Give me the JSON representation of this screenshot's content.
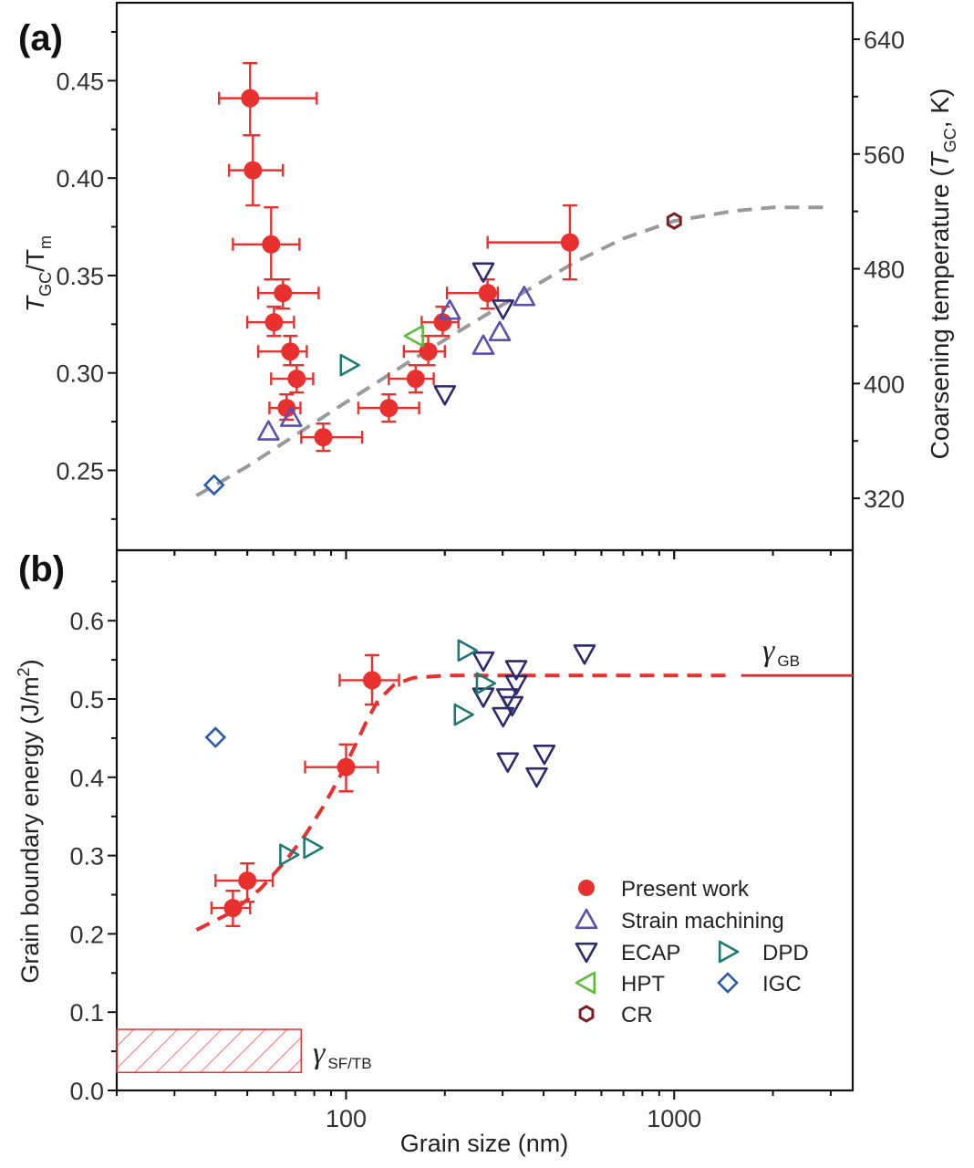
{
  "chart_data": [
    {
      "type": "scatter",
      "panel_label": "(a)",
      "xlabel": "Grain size (nm)",
      "xscale": "log",
      "xlim": [
        20,
        3500
      ],
      "x_ticks": [
        {
          "value": 100,
          "label": "100"
        },
        {
          "value": 1000,
          "label": "1000"
        }
      ],
      "ylabel_left": {
        "main": "T",
        "sub1": "GC",
        "sep": "/T",
        "sub2": "m"
      },
      "ylim": [
        0.209,
        0.49
      ],
      "y_ticks": [
        {
          "value": 0.25,
          "label": "0.25"
        },
        {
          "value": 0.3,
          "label": "0.30"
        },
        {
          "value": 0.35,
          "label": "0.35"
        },
        {
          "value": 0.4,
          "label": "0.40"
        },
        {
          "value": 0.45,
          "label": "0.45"
        }
      ],
      "ylabel_right": {
        "pre": "Coarsening temperature (",
        "main": "T",
        "sub": "GC",
        "post": ", K)"
      },
      "right_axis_factor_K": 1358,
      "y2_ticks": [
        {
          "value": 320,
          "label": "320"
        },
        {
          "value": 400,
          "label": "400"
        },
        {
          "value": 480,
          "label": "480"
        },
        {
          "value": 560,
          "label": "560"
        },
        {
          "value": 640,
          "label": "640"
        }
      ],
      "grid": false,
      "series": [
        {
          "name": "Present work",
          "marker": "circle",
          "color": "#e8312f",
          "points": [
            {
              "x": 51.0,
              "y": 0.441,
              "xlo": 41.0,
              "xhi": 81.4,
              "ylo": 0.422,
              "yhi": 0.459
            },
            {
              "x": 52.0,
              "y": 0.404,
              "xlo": 44.0,
              "xhi": 64.2,
              "ylo": 0.386,
              "yhi": 0.422
            },
            {
              "x": 59.1,
              "y": 0.366,
              "xlo": 45.2,
              "xhi": 72.1,
              "ylo": 0.348,
              "yhi": 0.385
            },
            {
              "x": 64.2,
              "y": 0.341,
              "xlo": 54.0,
              "xhi": 82.5,
              "ylo": 0.333,
              "yhi": 0.348
            },
            {
              "x": 60.3,
              "y": 0.326,
              "xlo": 50.0,
              "xhi": 69.4,
              "ylo": 0.319,
              "yhi": 0.334
            },
            {
              "x": 67.6,
              "y": 0.311,
              "xlo": 54.0,
              "xhi": 75.9,
              "ylo": 0.304,
              "yhi": 0.319
            },
            {
              "x": 70.7,
              "y": 0.297,
              "xlo": 59.1,
              "xhi": 79.4,
              "ylo": 0.29,
              "yhi": 0.304
            },
            {
              "x": 65.9,
              "y": 0.282,
              "xlo": 58.4,
              "xhi": 72.6,
              "ylo": 0.276,
              "yhi": 0.289
            },
            {
              "x": 85.2,
              "y": 0.267,
              "xlo": 73.0,
              "xhi": 112,
              "ylo": 0.26,
              "yhi": 0.274
            },
            {
              "x": 135,
              "y": 0.282,
              "xlo": 109,
              "xhi": 167,
              "ylo": 0.275,
              "yhi": 0.289
            },
            {
              "x": 163,
              "y": 0.297,
              "xlo": 135,
              "xhi": 185,
              "ylo": 0.29,
              "yhi": 0.304
            },
            {
              "x": 178,
              "y": 0.311,
              "xlo": 150,
              "xhi": 200,
              "ylo": 0.304,
              "yhi": 0.319
            },
            {
              "x": 197,
              "y": 0.326,
              "xlo": 170,
              "xhi": 220,
              "ylo": 0.319,
              "yhi": 0.334
            },
            {
              "x": 270,
              "y": 0.341,
              "xlo": 203,
              "xhi": 290,
              "ylo": 0.333,
              "yhi": 0.348
            },
            {
              "x": 481,
              "y": 0.367,
              "xlo": 270,
              "xhi": 481,
              "ylo": 0.348,
              "yhi": 0.386
            }
          ]
        },
        {
          "name": "Strain machining",
          "marker": "triangle-up",
          "color": "#5b4fb0",
          "points": [
            {
              "x": 58,
              "y": 0.27
            },
            {
              "x": 68,
              "y": 0.277
            },
            {
              "x": 207,
              "y": 0.332
            },
            {
              "x": 349,
              "y": 0.339
            },
            {
              "x": 294,
              "y": 0.321
            },
            {
              "x": 262,
              "y": 0.314
            }
          ]
        },
        {
          "name": "ECAP",
          "marker": "triangle-down",
          "color": "#2d2a6e",
          "points": [
            {
              "x": 262,
              "y": 0.352
            },
            {
              "x": 301,
              "y": 0.333
            },
            {
              "x": 200,
              "y": 0.289
            }
          ]
        },
        {
          "name": "HPT",
          "marker": "triangle-left",
          "color": "#5dbb3c",
          "points": [
            {
              "x": 162,
              "y": 0.319
            }
          ]
        },
        {
          "name": "DPD",
          "marker": "triangle-right",
          "color": "#1e7a70",
          "points": [
            {
              "x": 102,
              "y": 0.304
            }
          ]
        },
        {
          "name": "IGC",
          "marker": "diamond",
          "color": "#2a5aa8",
          "points": [
            {
              "x": 39.6,
              "y": 0.2425
            }
          ]
        },
        {
          "name": "CR",
          "marker": "hexagon",
          "color": "#7a1e1e",
          "points": [
            {
              "x": 1000,
              "y": 0.378
            }
          ]
        }
      ],
      "fit_curve": {
        "style": "dashed",
        "color": "#9a9a9a",
        "points": [
          {
            "x": 35,
            "y": 0.237
          },
          {
            "x": 50,
            "y": 0.252
          },
          {
            "x": 70,
            "y": 0.268
          },
          {
            "x": 100,
            "y": 0.285
          },
          {
            "x": 150,
            "y": 0.304
          },
          {
            "x": 200,
            "y": 0.317
          },
          {
            "x": 300,
            "y": 0.335
          },
          {
            "x": 500,
            "y": 0.357
          },
          {
            "x": 700,
            "y": 0.369
          },
          {
            "x": 1000,
            "y": 0.378
          },
          {
            "x": 1500,
            "y": 0.383
          },
          {
            "x": 2000,
            "y": 0.385
          },
          {
            "x": 2900,
            "y": 0.385
          }
        ]
      }
    },
    {
      "type": "scatter",
      "panel_label": "(b)",
      "xlabel": "Grain size (nm)",
      "xscale": "log",
      "xlim": [
        20,
        3500
      ],
      "x_ticks": [
        {
          "value": 100,
          "label": "100"
        },
        {
          "value": 1000,
          "label": "1000"
        }
      ],
      "ylabel": {
        "pre": "Grain boundary energy (J/m",
        "sup": "2",
        "post": ")"
      },
      "ylim": [
        0.0,
        0.69
      ],
      "y_ticks": [
        {
          "value": 0.0,
          "label": "0.0"
        },
        {
          "value": 0.1,
          "label": "0.1"
        },
        {
          "value": 0.2,
          "label": "0.2"
        },
        {
          "value": 0.3,
          "label": "0.3"
        },
        {
          "value": 0.4,
          "label": "0.4"
        },
        {
          "value": 0.5,
          "label": "0.5"
        },
        {
          "value": 0.6,
          "label": "0.6"
        }
      ],
      "grid": false,
      "series": [
        {
          "name": "Present work",
          "marker": "circle",
          "color": "#e8312f",
          "points": [
            {
              "x": 45.2,
              "y": 0.233,
              "xlo": 38.9,
              "xhi": 51.0,
              "ylo": 0.21,
              "yhi": 0.255
            },
            {
              "x": 50.0,
              "y": 0.268,
              "xlo": 40.0,
              "xhi": 59.8,
              "ylo": 0.241,
              "yhi": 0.29
            },
            {
              "x": 100,
              "y": 0.413,
              "xlo": 75.0,
              "xhi": 125,
              "ylo": 0.382,
              "yhi": 0.442
            },
            {
              "x": 120,
              "y": 0.524,
              "xlo": 95.6,
              "xhi": 145,
              "ylo": 0.493,
              "yhi": 0.556
            }
          ]
        },
        {
          "name": "ECAP",
          "marker": "triangle-down",
          "color": "#2d2a6e",
          "points": [
            {
              "x": 262,
              "y": 0.549
            },
            {
              "x": 330,
              "y": 0.538
            },
            {
              "x": 330,
              "y": 0.519
            },
            {
              "x": 262,
              "y": 0.503
            },
            {
              "x": 310,
              "y": 0.502
            },
            {
              "x": 321,
              "y": 0.492
            },
            {
              "x": 301,
              "y": 0.478
            },
            {
              "x": 533,
              "y": 0.558
            },
            {
              "x": 311,
              "y": 0.42
            },
            {
              "x": 402,
              "y": 0.43
            },
            {
              "x": 381,
              "y": 0.401
            }
          ]
        },
        {
          "name": "DPD",
          "marker": "triangle-right",
          "color": "#1e7a70",
          "points": [
            {
              "x": 66.7,
              "y": 0.301
            },
            {
              "x": 78.9,
              "y": 0.31
            },
            {
              "x": 233,
              "y": 0.562
            },
            {
              "x": 265,
              "y": 0.52
            },
            {
              "x": 227,
              "y": 0.48
            }
          ]
        },
        {
          "name": "IGC",
          "marker": "diamond",
          "color": "#2a5aa8",
          "points": [
            {
              "x": 40,
              "y": 0.451
            }
          ]
        }
      ],
      "fit_curve": {
        "style": "dashed",
        "color": "#e8312f",
        "points": [
          {
            "x": 35,
            "y": 0.205
          },
          {
            "x": 45,
            "y": 0.228
          },
          {
            "x": 55,
            "y": 0.258
          },
          {
            "x": 65,
            "y": 0.292
          },
          {
            "x": 75,
            "y": 0.326
          },
          {
            "x": 85,
            "y": 0.362
          },
          {
            "x": 95,
            "y": 0.398
          },
          {
            "x": 105,
            "y": 0.435
          },
          {
            "x": 115,
            "y": 0.47
          },
          {
            "x": 125,
            "y": 0.498
          },
          {
            "x": 140,
            "y": 0.518
          },
          {
            "x": 160,
            "y": 0.527
          },
          {
            "x": 200,
            "y": 0.53
          },
          {
            "x": 400,
            "y": 0.53
          },
          {
            "x": 1500,
            "y": 0.53
          }
        ]
      },
      "gb_line": {
        "value": 0.53,
        "x_from": 1600,
        "x_to": 3500,
        "color": "#e8312f",
        "label_main": "γ",
        "label_sub": "GB"
      },
      "sf_tb_band": {
        "x_from": 20,
        "x_to": 73,
        "y_from": 0.023,
        "y_to": 0.078,
        "color": "#e8312f",
        "label_main": "γ",
        "label_sub": "SF/TB"
      }
    }
  ],
  "legend": {
    "placement": "bottom-right of panel (b)",
    "items": [
      {
        "label": "Present work",
        "marker": "circle",
        "color": "#e8312f"
      },
      {
        "label": "Strain machining",
        "marker": "triangle-up",
        "color": "#5b4fb0"
      },
      {
        "label": "ECAP",
        "marker": "triangle-down",
        "color": "#2d2a6e"
      },
      {
        "label": "DPD",
        "marker": "triangle-right",
        "color": "#1e7a70"
      },
      {
        "label": "HPT",
        "marker": "triangle-left",
        "color": "#5dbb3c"
      },
      {
        "label": "IGC",
        "marker": "diamond",
        "color": "#2a5aa8"
      },
      {
        "label": "CR",
        "marker": "hexagon",
        "color": "#7a1e1e"
      }
    ]
  }
}
